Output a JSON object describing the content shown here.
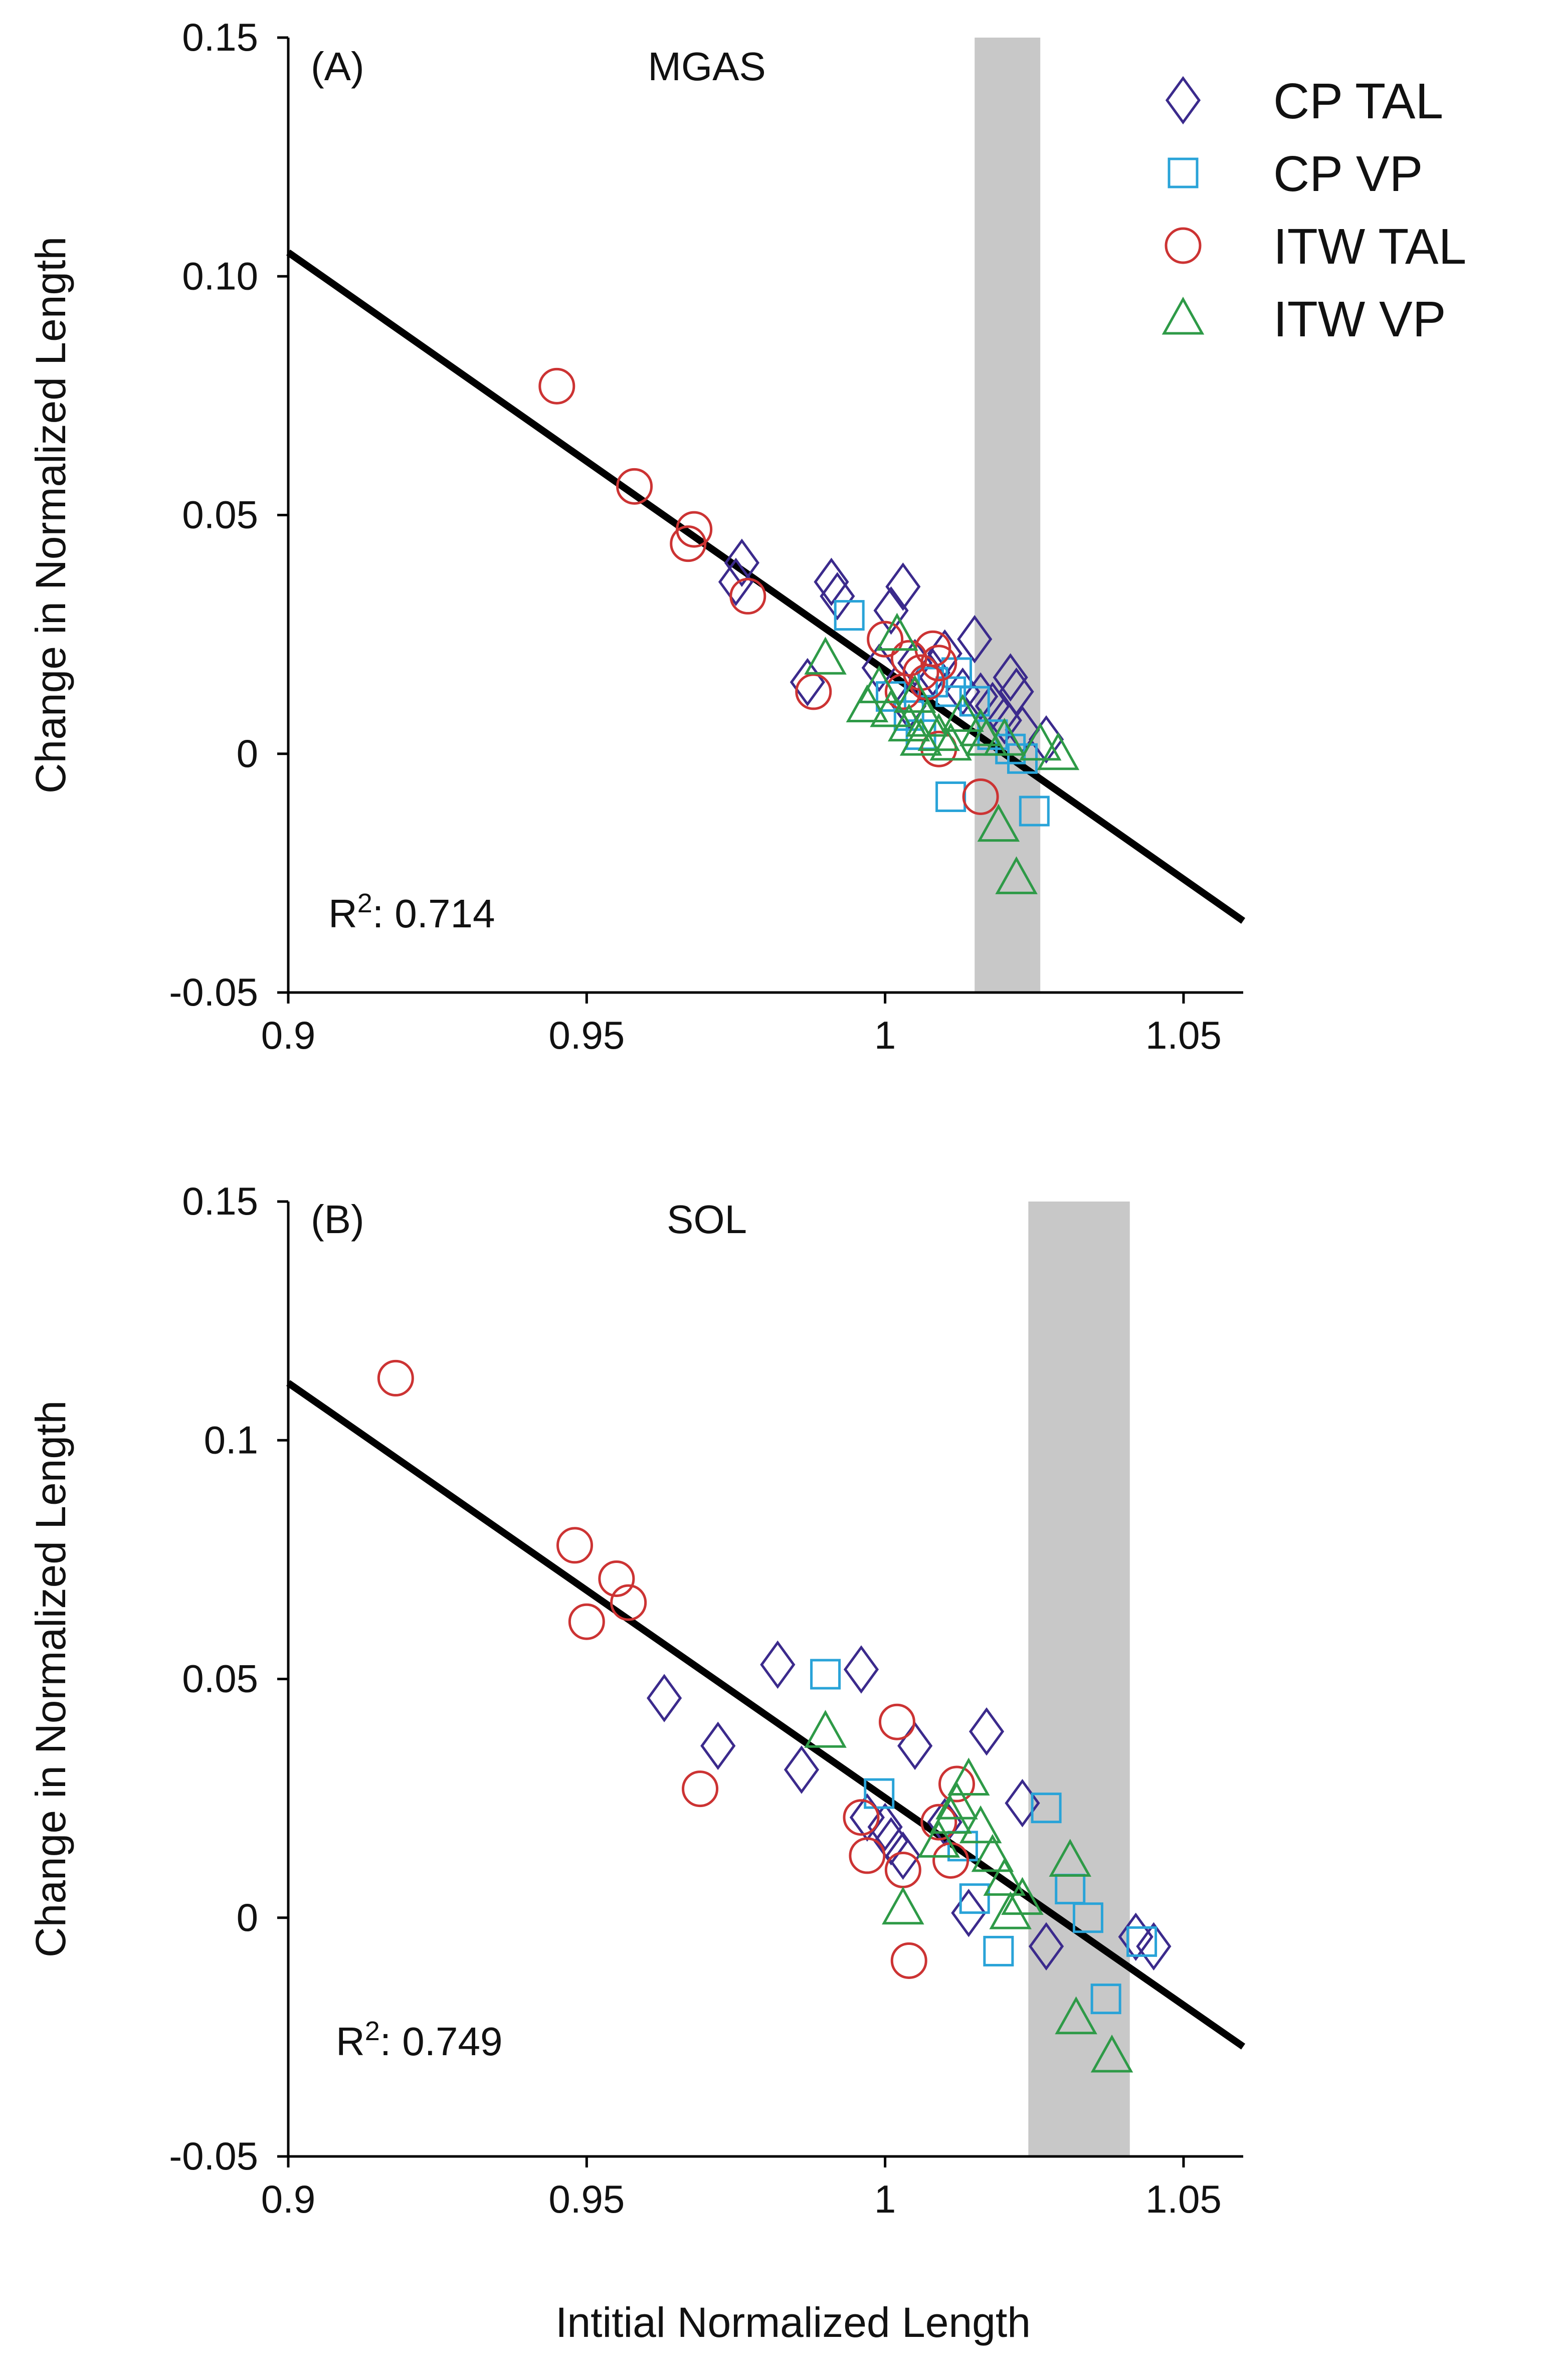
{
  "figure": {
    "xlabel": "Intitial Normalized Length"
  },
  "legend": {
    "placement": "top-right",
    "entries": [
      {
        "name": "CP TAL",
        "marker": "diamond",
        "color": "#3b2a8c"
      },
      {
        "name": "CP VP",
        "marker": "square",
        "color": "#29a3d8"
      },
      {
        "name": "ITW TAL",
        "marker": "circle",
        "color": "#cc3333"
      },
      {
        "name": "ITW VP",
        "marker": "triangle",
        "color": "#2e9a47"
      }
    ]
  },
  "chart_data": [
    {
      "type": "scatter",
      "panel_label": "(A)",
      "title": "MGAS",
      "xlabel": "",
      "ylabel": "Change in Normalized Length",
      "xlim": [
        0.9,
        1.06
      ],
      "ylim": [
        -0.05,
        0.15
      ],
      "xticks": [
        "0.9",
        "0.95",
        "1",
        "1.05"
      ],
      "yticks": [
        "-0.05",
        "0",
        "0.05",
        "0.10",
        "0.15"
      ],
      "shaded_band": [
        1.015,
        1.026
      ],
      "fit_line": {
        "x": [
          0.9,
          1.06
        ],
        "y": [
          0.105,
          -0.035
        ]
      },
      "r2_label": "R",
      "r2_exp": "2",
      "r2_value": ":  0.714",
      "series": [
        {
          "name": "CP TAL",
          "points": [
            [
              0.976,
              0.04
            ],
            [
              0.975,
              0.036
            ],
            [
              0.987,
              0.015
            ],
            [
              0.991,
              0.036
            ],
            [
              0.992,
              0.033
            ],
            [
              0.999,
              0.018
            ],
            [
              1.001,
              0.03
            ],
            [
              1.003,
              0.035
            ],
            [
              1.005,
              0.019
            ],
            [
              1.008,
              0.017
            ],
            [
              1.013,
              0.013
            ],
            [
              1.015,
              0.024
            ],
            [
              1.016,
              0.012
            ],
            [
              1.018,
              0.01
            ],
            [
              1.021,
              0.016
            ],
            [
              1.022,
              0.013
            ],
            [
              1.02,
              0.007
            ],
            [
              1.023,
              0.005
            ],
            [
              1.027,
              0.003
            ],
            [
              1.01,
              0.021
            ],
            [
              1.004,
              0.01
            ]
          ]
        },
        {
          "name": "CP VP",
          "points": [
            [
              0.994,
              0.029
            ],
            [
              1.001,
              0.012
            ],
            [
              1.004,
              0.008
            ],
            [
              1.006,
              0.004
            ],
            [
              1.008,
              0.015
            ],
            [
              1.011,
              0.013
            ],
            [
              1.011,
              -0.009
            ],
            [
              1.015,
              0.011
            ],
            [
              1.018,
              0.004
            ],
            [
              1.021,
              0.001
            ],
            [
              1.023,
              -0.001
            ],
            [
              1.025,
              -0.012
            ],
            [
              1.012,
              0.017
            ]
          ]
        },
        {
          "name": "ITW TAL",
          "points": [
            [
              0.945,
              0.077
            ],
            [
              0.958,
              0.056
            ],
            [
              0.968,
              0.047
            ],
            [
              0.967,
              0.044
            ],
            [
              0.977,
              0.033
            ],
            [
              0.988,
              0.013
            ],
            [
              1.0,
              0.024
            ],
            [
              1.004,
              0.02
            ],
            [
              1.006,
              0.017
            ],
            [
              1.007,
              0.015
            ],
            [
              1.008,
              0.022
            ],
            [
              1.009,
              0.019
            ],
            [
              1.009,
              0.001
            ],
            [
              1.016,
              -0.009
            ],
            [
              1.003,
              0.013
            ]
          ]
        },
        {
          "name": "ITW VP",
          "points": [
            [
              0.99,
              0.02
            ],
            [
              0.997,
              0.01
            ],
            [
              0.999,
              0.014
            ],
            [
              1.001,
              0.009
            ],
            [
              1.002,
              0.025
            ],
            [
              1.004,
              0.006
            ],
            [
              1.006,
              0.003
            ],
            [
              1.007,
              0.007
            ],
            [
              1.009,
              0.004
            ],
            [
              1.011,
              0.002
            ],
            [
              1.013,
              0.008
            ],
            [
              1.016,
              0.005
            ],
            [
              1.017,
              0.003
            ],
            [
              1.019,
              -0.015
            ],
            [
              1.022,
              -0.026
            ],
            [
              1.026,
              0.002
            ],
            [
              1.029,
              0.0
            ],
            [
              1.02,
              0.003
            ],
            [
              1.005,
              0.012
            ]
          ]
        }
      ]
    },
    {
      "type": "scatter",
      "panel_label": "(B)",
      "title": "SOL",
      "xlabel": "Intitial Normalized Length",
      "ylabel": "Change in Normalized Length",
      "xlim": [
        0.9,
        1.06
      ],
      "ylim": [
        -0.05,
        0.15
      ],
      "xticks": [
        "0.9",
        "0.95",
        "1",
        "1.05"
      ],
      "yticks": [
        "-0.05",
        "0",
        "0.05",
        "0.1",
        "0.15"
      ],
      "shaded_band": [
        1.024,
        1.041
      ],
      "fit_line": {
        "x": [
          0.9,
          1.06
        ],
        "y": [
          0.112,
          -0.027
        ]
      },
      "r2_label": "R",
      "r2_exp": "2",
      "r2_value": ":  0.749",
      "series": [
        {
          "name": "CP TAL",
          "points": [
            [
              0.963,
              0.046
            ],
            [
              0.972,
              0.036
            ],
            [
              0.982,
              0.053
            ],
            [
              0.986,
              0.031
            ],
            [
              0.996,
              0.052
            ],
            [
              0.997,
              0.021
            ],
            [
              1.0,
              0.019
            ],
            [
              1.001,
              0.016
            ],
            [
              1.003,
              0.013
            ],
            [
              1.005,
              0.036
            ],
            [
              1.014,
              0.001
            ],
            [
              1.017,
              0.039
            ],
            [
              1.023,
              0.024
            ],
            [
              1.027,
              -0.006
            ],
            [
              1.045,
              -0.006
            ],
            [
              1.042,
              -0.004
            ],
            [
              1.01,
              0.02
            ]
          ]
        },
        {
          "name": "CP VP",
          "points": [
            [
              0.99,
              0.051
            ],
            [
              0.999,
              0.026
            ],
            [
              1.013,
              0.015
            ],
            [
              1.015,
              0.004
            ],
            [
              1.019,
              -0.007
            ],
            [
              1.027,
              0.023
            ],
            [
              1.031,
              0.006
            ],
            [
              1.034,
              0.0
            ],
            [
              1.037,
              -0.017
            ],
            [
              1.043,
              -0.005
            ]
          ]
        },
        {
          "name": "ITW TAL",
          "points": [
            [
              0.918,
              0.113
            ],
            [
              0.948,
              0.078
            ],
            [
              0.95,
              0.062
            ],
            [
              0.955,
              0.071
            ],
            [
              0.957,
              0.066
            ],
            [
              0.969,
              0.027
            ],
            [
              0.996,
              0.021
            ],
            [
              0.997,
              0.013
            ],
            [
              1.002,
              0.041
            ],
            [
              1.003,
              0.01
            ],
            [
              1.004,
              -0.009
            ],
            [
              1.009,
              0.02
            ],
            [
              1.011,
              0.012
            ],
            [
              1.012,
              0.028
            ]
          ]
        },
        {
          "name": "ITW VP",
          "points": [
            [
              0.99,
              0.039
            ],
            [
              1.003,
              0.002
            ],
            [
              1.009,
              0.016
            ],
            [
              1.012,
              0.024
            ],
            [
              1.014,
              0.029
            ],
            [
              1.016,
              0.019
            ],
            [
              1.018,
              0.013
            ],
            [
              1.021,
              0.001
            ],
            [
              1.023,
              0.004
            ],
            [
              1.031,
              0.012
            ],
            [
              1.032,
              -0.021
            ],
            [
              1.038,
              -0.029
            ],
            [
              1.011,
              0.021
            ],
            [
              1.02,
              0.008
            ]
          ]
        }
      ]
    }
  ]
}
